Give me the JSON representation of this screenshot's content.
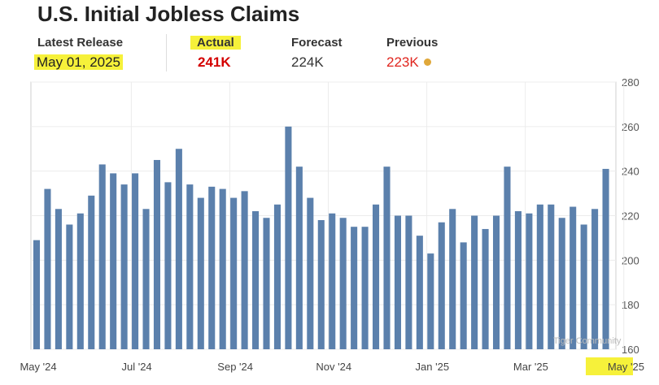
{
  "title": "U.S. Initial Jobless Claims",
  "stats": {
    "latest_release_label": "Latest Release",
    "latest_release_value": "May 01, 2025",
    "actual_label": "Actual",
    "actual_value": "241K",
    "forecast_label": "Forecast",
    "forecast_value": "224K",
    "previous_label": "Previous",
    "previous_value": "223K"
  },
  "colors": {
    "bar": "#5b80ac",
    "actual": "#d40000",
    "previous": "#e0251e",
    "highlight": "#f6f13a",
    "previous_dot": "#e0a83a"
  },
  "watermark": "Tiger Community",
  "chart_data": {
    "type": "bar",
    "title": "",
    "xlabel": "",
    "ylabel": "",
    "ylim": [
      160,
      280
    ],
    "yticks": [
      160,
      180,
      200,
      220,
      240,
      260,
      280
    ],
    "x_tick_labels": [
      "May '24",
      "Jul '24",
      "Sep '24",
      "Nov '24",
      "Jan '25",
      "Mar '25",
      "May '25"
    ],
    "x_tick_bar_index": [
      0,
      9,
      18,
      27,
      36,
      45,
      54
    ],
    "grid": true,
    "values": [
      209,
      232,
      223,
      216,
      221,
      229,
      243,
      239,
      234,
      239,
      223,
      245,
      235,
      250,
      234,
      228,
      233,
      232,
      228,
      231,
      222,
      219,
      225,
      260,
      242,
      228,
      218,
      221,
      219,
      215,
      215,
      225,
      242,
      220,
      220,
      211,
      203,
      217,
      223,
      208,
      220,
      214,
      220,
      242,
      222,
      221,
      225,
      225,
      219,
      224,
      216,
      223,
      241
    ]
  }
}
